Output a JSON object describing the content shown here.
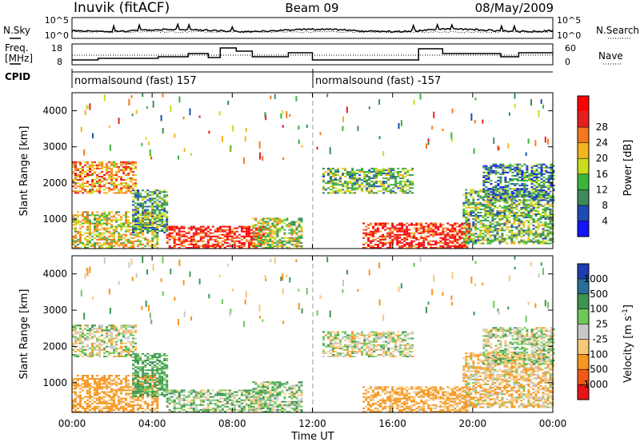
{
  "header": {
    "station": "Inuvik (fitACF)",
    "beam": "Beam 09",
    "date": "08/May/2009"
  },
  "noise_panel": {
    "left_label": "N.Sky",
    "left_ticks": [
      "10^5",
      "10^0"
    ],
    "right_label": "N.Search",
    "right_ticks": [
      "10^5",
      "10^0"
    ]
  },
  "freq_panel": {
    "left_label_1": "Freq.",
    "left_label_2": "[MHz]",
    "left_ticks": [
      "18",
      "8"
    ],
    "right_label": "Nave",
    "right_ticks": [
      "60",
      "0"
    ]
  },
  "cpid_panel": {
    "label": "CPID",
    "mode_1": "normalsound (fast) 157",
    "mode_2": "normalsound (fast) -157"
  },
  "power_panel": {
    "ylabel": "Slant Range [km]",
    "yticks": [
      "1000",
      "2000",
      "3000",
      "4000"
    ],
    "colorbar_label": "Power [dB]",
    "colorbar_ticks": [
      "4",
      "8",
      "12",
      "16",
      "20",
      "24",
      "28"
    ],
    "colors": [
      "#1414ff",
      "#1e4ab4",
      "#3c8c5a",
      "#3cb43c",
      "#c8dc1e",
      "#f5b41e",
      "#f5781e",
      "#e61e1e",
      "#ff0000"
    ]
  },
  "velocity_panel": {
    "ylabel": "Slant Range [km]",
    "yticks": [
      "1000",
      "2000",
      "3000",
      "4000"
    ],
    "colorbar_label": "Velocity [m s",
    "colorbar_label_sup": "-1",
    "colorbar_label_end": "]",
    "colorbar_ticks": [
      "-1000",
      "-500",
      "-100",
      "-25",
      "25",
      "100",
      "500",
      "1000"
    ],
    "colors": [
      "#e61414",
      "#f05a14",
      "#f5961e",
      "#f5c878",
      "#c8c8c8",
      "#6ec85a",
      "#3c9650",
      "#286e96",
      "#1e3cb4"
    ]
  },
  "x_axis": {
    "ticks": [
      "00:00",
      "04:00",
      "08:00",
      "12:00",
      "16:00",
      "20:00",
      "00:00"
    ],
    "label": "Time UT"
  },
  "chart_data": {
    "type": "heatmap",
    "x_range_hours": [
      0,
      24
    ],
    "y_range_km": [
      180,
      4500
    ],
    "time_ticks_ut": [
      "00:00",
      "04:00",
      "08:00",
      "12:00",
      "16:00",
      "20:00",
      "00:00"
    ],
    "mode_change_ut": "12:00",
    "power_db_colorscale": [
      4,
      8,
      12,
      16,
      20,
      24,
      28
    ],
    "velocity_colorscale_m_s": [
      -1000,
      -500,
      -100,
      -25,
      25,
      100,
      500,
      1000
    ],
    "echo_regions": [
      {
        "t_start": 0.0,
        "t_end": 3.2,
        "range_min": 1700,
        "range_max": 2600,
        "power_db": 22,
        "velocity": 0
      },
      {
        "t_start": 0.0,
        "t_end": 4.3,
        "range_min": 180,
        "range_max": 1200,
        "power_db": 18,
        "velocity": -200
      },
      {
        "t_start": 3.0,
        "t_end": 4.7,
        "range_min": 600,
        "range_max": 1800,
        "power_db": 12,
        "velocity": 150
      },
      {
        "t_start": 4.7,
        "t_end": 9.5,
        "range_min": 180,
        "range_max": 800,
        "power_db": 28,
        "velocity": 60
      },
      {
        "t_start": 9.0,
        "t_end": 11.5,
        "range_min": 180,
        "range_max": 1000,
        "power_db": 16,
        "velocity": 60
      },
      {
        "t_start": 12.5,
        "t_end": 17.0,
        "range_min": 1700,
        "range_max": 2400,
        "power_db": 14,
        "velocity": 0
      },
      {
        "t_start": 14.5,
        "t_end": 19.8,
        "range_min": 180,
        "range_max": 900,
        "power_db": 28,
        "velocity": -150
      },
      {
        "t_start": 19.5,
        "t_end": 24.0,
        "range_min": 300,
        "range_max": 1800,
        "power_db": 14,
        "velocity": -80
      },
      {
        "t_start": 20.5,
        "t_end": 24.0,
        "range_min": 1500,
        "range_max": 2500,
        "power_db": 10,
        "velocity": 20
      }
    ]
  }
}
